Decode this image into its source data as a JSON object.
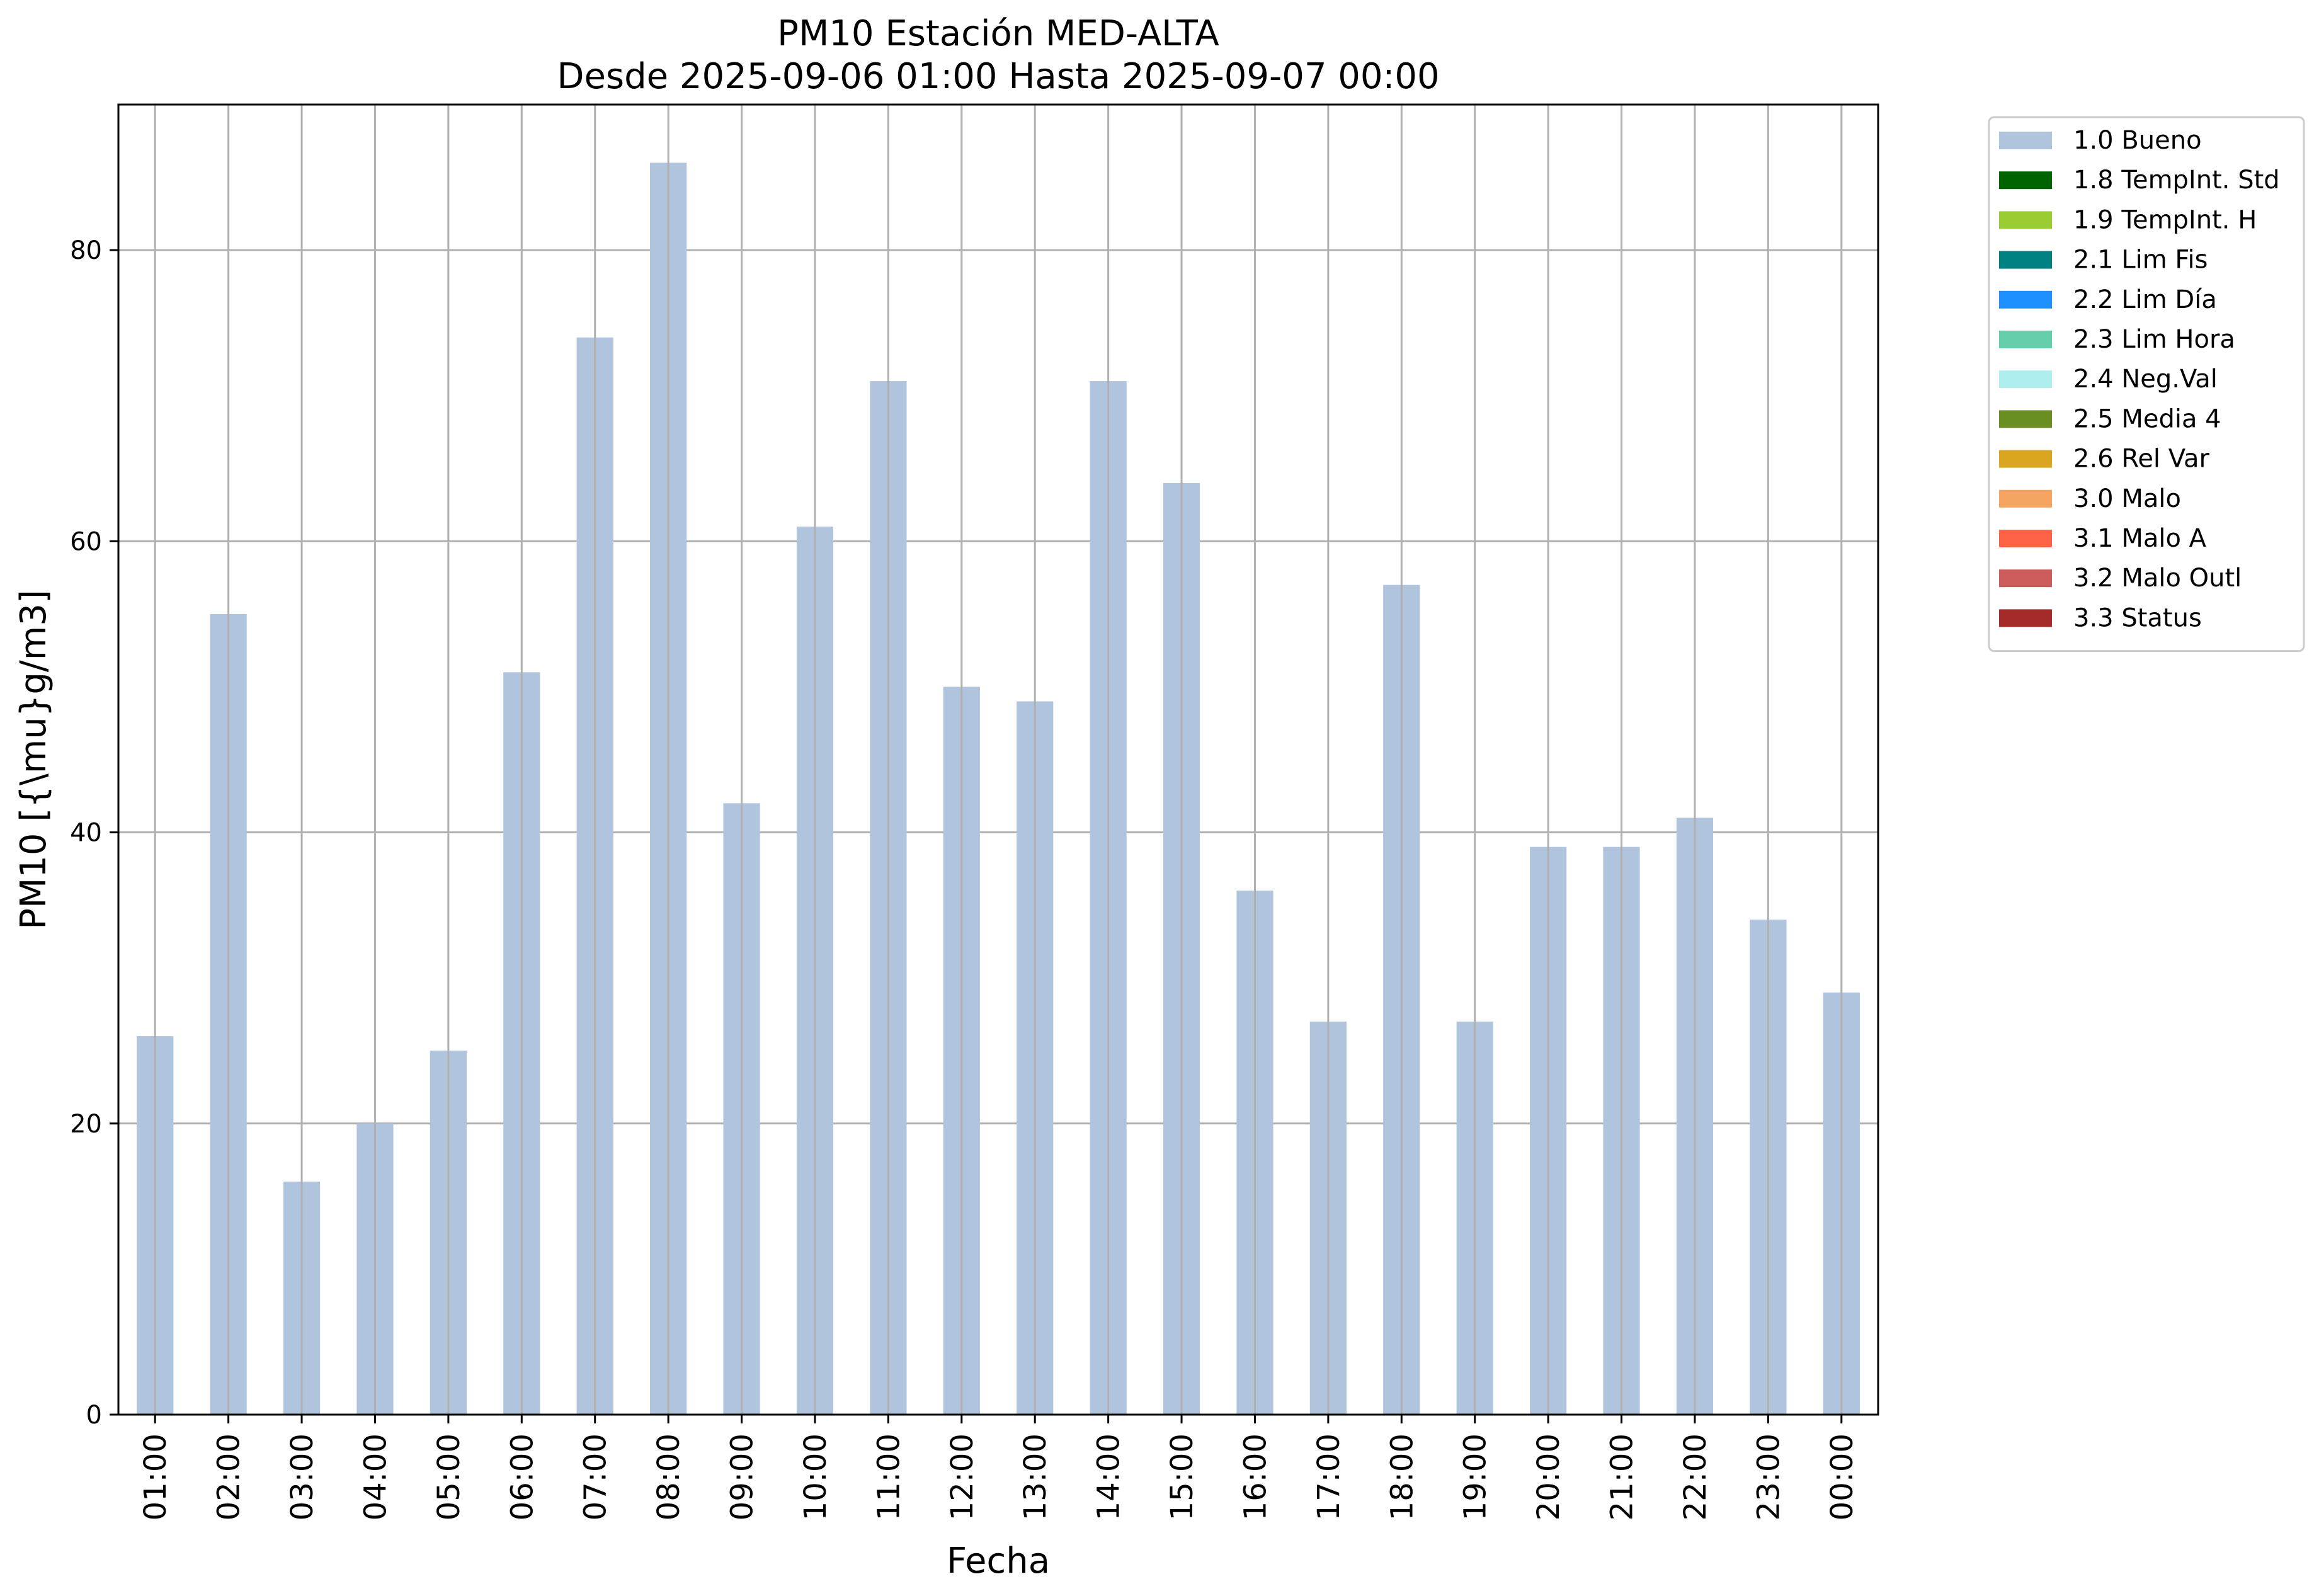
{
  "chart_data": {
    "type": "bar",
    "title_line1": "PM10 Estación MED-ALTA",
    "title_line2": "Desde 2025-09-06 01:00 Hasta 2025-09-07 00:00",
    "xlabel": "Fecha",
    "ylabel": "PM10 [{\\mu}g/m3]",
    "ylim": [
      0,
      90
    ],
    "yticks": [
      0,
      20,
      40,
      60,
      80
    ],
    "grid": true,
    "legend_position": "outside-top-right",
    "categories": [
      "01:00",
      "02:00",
      "03:00",
      "04:00",
      "05:00",
      "06:00",
      "07:00",
      "08:00",
      "09:00",
      "10:00",
      "11:00",
      "12:00",
      "13:00",
      "14:00",
      "15:00",
      "16:00",
      "17:00",
      "18:00",
      "19:00",
      "20:00",
      "21:00",
      "22:00",
      "23:00",
      "00:00"
    ],
    "series": [
      {
        "name": "1.0 Bueno",
        "color": "#b0c4de",
        "values": [
          26,
          55,
          16,
          20,
          25,
          51,
          74,
          86,
          42,
          61,
          71,
          50,
          49,
          71,
          64,
          36,
          27,
          57,
          27,
          39,
          39,
          41,
          34,
          29
        ]
      }
    ],
    "legend": [
      {
        "label": "1.0 Bueno",
        "color": "#b0c4de"
      },
      {
        "label": "1.8 TempInt. Std",
        "color": "#006400"
      },
      {
        "label": "1.9 TempInt. H",
        "color": "#9acd32"
      },
      {
        "label": "2.1 Lim Fis",
        "color": "#008080"
      },
      {
        "label": "2.2 Lim Día",
        "color": "#1e90ff"
      },
      {
        "label": "2.3 Lim Hora",
        "color": "#66cdaa"
      },
      {
        "label": "2.4 Neg.Val",
        "color": "#afeeee"
      },
      {
        "label": "2.5 Media 4",
        "color": "#6b8e23"
      },
      {
        "label": "2.6 Rel Var",
        "color": "#daa520"
      },
      {
        "label": "3.0 Malo",
        "color": "#f4a460"
      },
      {
        "label": "3.1 Malo A",
        "color": "#ff6347"
      },
      {
        "label": "3.2 Malo Outl",
        "color": "#cd5c5c"
      },
      {
        "label": "3.3 Status",
        "color": "#a52a2a"
      }
    ]
  }
}
